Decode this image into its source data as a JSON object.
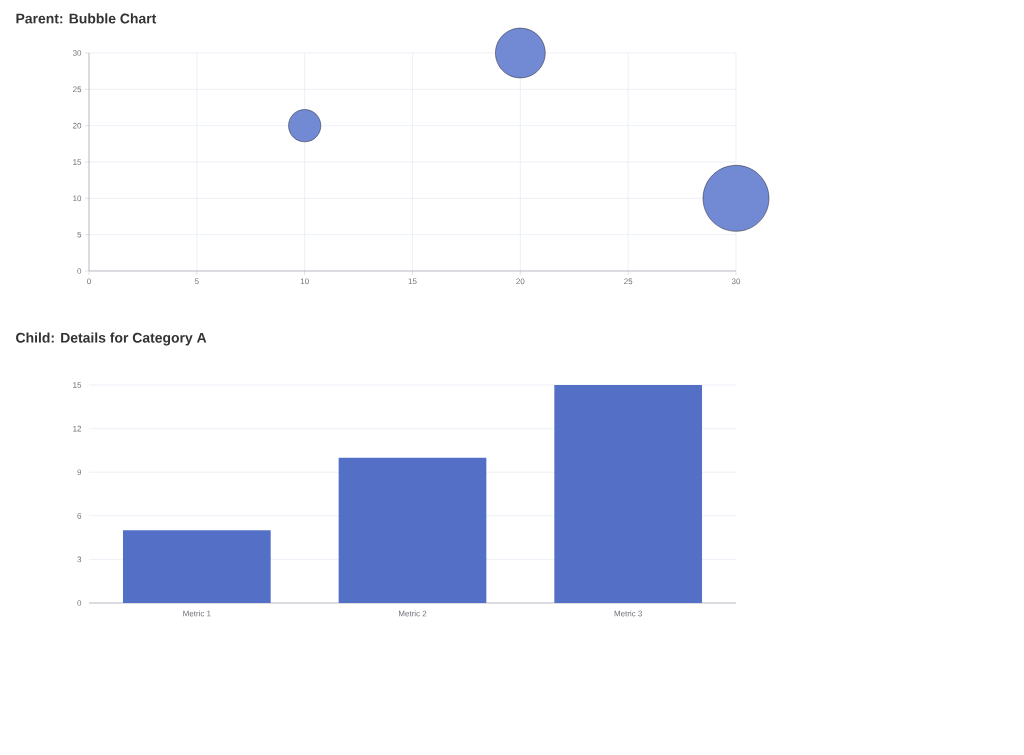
{
  "chart_data": [
    {
      "type": "bubble",
      "title": "Parent: Bubble Chart",
      "x": [
        10,
        20,
        30
      ],
      "values": [
        20,
        30,
        10
      ],
      "sizes": [
        0.24,
        0.57,
        1
      ],
      "color": "#7289d4",
      "xlim": [
        0,
        30
      ],
      "ylim": [
        0,
        30
      ],
      "xticks": [
        0,
        5,
        10,
        15,
        20,
        25,
        30
      ],
      "yticks": [
        0,
        5,
        10,
        15,
        20,
        25,
        30
      ],
      "grid": true
    },
    {
      "type": "bar",
      "title": "Child: Details for Category A",
      "categories": [
        "Metric 1",
        "Metric 2",
        "Metric 3"
      ],
      "values": [
        5,
        10,
        15
      ],
      "color": "#5470c6",
      "ylim": [
        0,
        15
      ],
      "yticks": [
        0,
        3,
        6,
        9,
        12,
        15
      ],
      "grid": "y"
    }
  ]
}
